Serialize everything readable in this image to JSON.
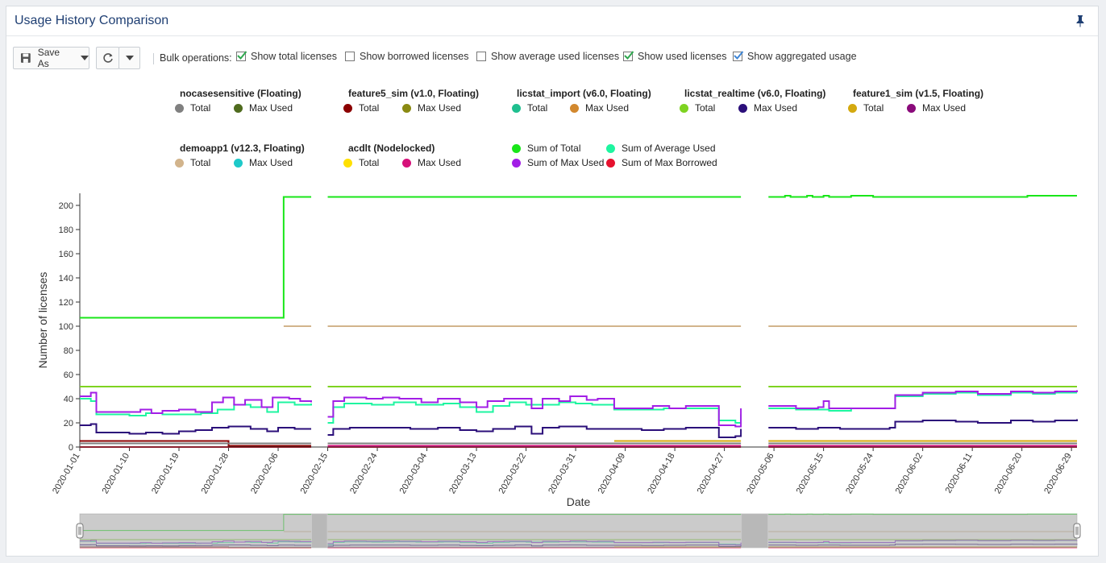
{
  "panel": {
    "title": "Usage History Comparison"
  },
  "toolbar": {
    "save_label": "Save As",
    "bulk_label": "Bulk operations:",
    "checkboxes": [
      {
        "label": "Show total licenses",
        "checked": true
      },
      {
        "label": "Show borrowed licenses",
        "checked": false
      },
      {
        "label": "Show average used licenses",
        "checked": false
      },
      {
        "label": "Show used licenses",
        "checked": true
      },
      {
        "label": "Show aggregated usage",
        "checked": true
      }
    ]
  },
  "legend": {
    "groups": [
      {
        "title": "nocasesensitive (Floating)",
        "items": [
          {
            "label": "Total",
            "color": "#808080"
          },
          {
            "label": "Max Used",
            "color": "#4f6b1e"
          }
        ]
      },
      {
        "title": "feature5_sim (v1.0, Floating)",
        "items": [
          {
            "label": "Total",
            "color": "#8b0000"
          },
          {
            "label": "Max Used",
            "color": "#8a8a12"
          }
        ]
      },
      {
        "title": "licstat_import (v6.0, Floating)",
        "items": [
          {
            "label": "Total",
            "color": "#1fbf8f"
          },
          {
            "label": "Max Used",
            "color": "#d2882e"
          }
        ]
      },
      {
        "title": "licstat_realtime (v6.0, Floating)",
        "items": [
          {
            "label": "Total",
            "color": "#7ed321"
          },
          {
            "label": "Max Used",
            "color": "#2b0f7a"
          }
        ]
      },
      {
        "title": "feature1_sim (v1.5, Floating)",
        "items": [
          {
            "label": "Total",
            "color": "#d4a90f"
          },
          {
            "label": "Max Used",
            "color": "#8a0a7a"
          }
        ]
      },
      {
        "title": "demoapp1 (v12.3, Floating)",
        "items": [
          {
            "label": "Total",
            "color": "#d2b48c"
          },
          {
            "label": "Max Used",
            "color": "#1ec9c9"
          }
        ]
      },
      {
        "title": "acdlt (Nodelocked)",
        "items": [
          {
            "label": "Total",
            "color": "#ffe000"
          },
          {
            "label": "Max Used",
            "color": "#d6117a"
          }
        ]
      }
    ],
    "aggregate": [
      {
        "label": "Sum of Total",
        "color": "#19e619"
      },
      {
        "label": "Sum of Average Used",
        "color": "#1ef5a0"
      },
      {
        "label": "Sum of Max Used",
        "color": "#a21ee6"
      },
      {
        "label": "Sum of Max Borrowed",
        "color": "#e6112e"
      }
    ]
  },
  "chart_data": {
    "type": "line",
    "xlabel": "Date",
    "ylabel": "Number of licenses",
    "ylim": [
      0,
      210
    ],
    "yticks": [
      0,
      20,
      40,
      60,
      80,
      100,
      120,
      140,
      160,
      180,
      200
    ],
    "xlim": [
      "2020-01-01",
      "2020-06-30"
    ],
    "xticks": [
      "2020-01-01",
      "2020-01-10",
      "2020-01-19",
      "2020-01-28",
      "2020-02-06",
      "2020-02-15",
      "2020-02-24",
      "2020-03-04",
      "2020-03-13",
      "2020-03-22",
      "2020-03-31",
      "2020-04-09",
      "2020-04-18",
      "2020-04-27",
      "2020-05-06",
      "2020-05-15",
      "2020-05-24",
      "2020-06-02",
      "2020-06-11",
      "2020-06-20",
      "2020-06-29"
    ],
    "gaps": [
      [
        "2020-02-12",
        "2020-02-15"
      ],
      [
        "2020-04-30",
        "2020-05-05"
      ]
    ],
    "series": [
      {
        "name": "Sum of Total",
        "color": "#19e619",
        "points": [
          [
            "2020-01-01",
            107
          ],
          [
            "2020-02-07",
            107
          ],
          [
            "2020-02-07",
            207
          ],
          [
            "2020-02-12",
            207
          ],
          [
            "2020-02-15",
            207
          ],
          [
            "2020-04-30",
            207
          ],
          [
            "2020-05-05",
            207
          ],
          [
            "2020-05-08",
            208
          ],
          [
            "2020-05-09",
            207
          ],
          [
            "2020-05-12",
            208
          ],
          [
            "2020-05-13",
            207
          ],
          [
            "2020-05-15",
            208
          ],
          [
            "2020-05-16",
            207
          ],
          [
            "2020-05-20",
            208
          ],
          [
            "2020-05-24",
            207
          ],
          [
            "2020-06-20",
            207
          ],
          [
            "2020-06-21",
            208
          ],
          [
            "2020-06-30",
            208
          ]
        ]
      },
      {
        "name": "Sum of Max Used",
        "color": "#a21ee6",
        "points": [
          [
            "2020-01-01",
            42
          ],
          [
            "2020-01-03",
            45
          ],
          [
            "2020-01-04",
            29
          ],
          [
            "2020-01-10",
            29
          ],
          [
            "2020-01-12",
            31
          ],
          [
            "2020-01-14",
            28
          ],
          [
            "2020-01-16",
            30
          ],
          [
            "2020-01-19",
            31
          ],
          [
            "2020-01-22",
            29
          ],
          [
            "2020-01-25",
            37
          ],
          [
            "2020-01-27",
            41
          ],
          [
            "2020-01-29",
            35
          ],
          [
            "2020-01-31",
            39
          ],
          [
            "2020-02-03",
            33
          ],
          [
            "2020-02-05",
            41
          ],
          [
            "2020-02-08",
            40
          ],
          [
            "2020-02-10",
            38
          ],
          [
            "2020-02-12",
            37
          ],
          [
            "2020-02-15",
            25
          ],
          [
            "2020-02-16",
            38
          ],
          [
            "2020-02-18",
            41
          ],
          [
            "2020-02-22",
            40
          ],
          [
            "2020-02-25",
            41
          ],
          [
            "2020-02-28",
            40
          ],
          [
            "2020-03-03",
            37
          ],
          [
            "2020-03-06",
            40
          ],
          [
            "2020-03-10",
            37
          ],
          [
            "2020-03-13",
            33
          ],
          [
            "2020-03-15",
            38
          ],
          [
            "2020-03-18",
            40
          ],
          [
            "2020-03-21",
            40
          ],
          [
            "2020-03-23",
            32
          ],
          [
            "2020-03-25",
            40
          ],
          [
            "2020-03-28",
            38
          ],
          [
            "2020-03-30",
            42
          ],
          [
            "2020-04-02",
            39
          ],
          [
            "2020-04-04",
            40
          ],
          [
            "2020-04-07",
            32
          ],
          [
            "2020-04-12",
            32
          ],
          [
            "2020-04-14",
            34
          ],
          [
            "2020-04-17",
            32
          ],
          [
            "2020-04-20",
            34
          ],
          [
            "2020-04-25",
            34
          ],
          [
            "2020-04-26",
            18
          ],
          [
            "2020-04-29",
            17
          ],
          [
            "2020-04-30",
            32
          ],
          [
            "2020-05-05",
            34
          ],
          [
            "2020-05-10",
            32
          ],
          [
            "2020-05-14",
            33
          ],
          [
            "2020-05-15",
            38
          ],
          [
            "2020-05-16",
            32
          ],
          [
            "2020-05-20",
            32
          ],
          [
            "2020-05-27",
            32
          ],
          [
            "2020-05-28",
            43
          ],
          [
            "2020-06-02",
            45
          ],
          [
            "2020-06-08",
            46
          ],
          [
            "2020-06-12",
            44
          ],
          [
            "2020-06-18",
            46
          ],
          [
            "2020-06-22",
            45
          ],
          [
            "2020-06-26",
            46
          ],
          [
            "2020-06-30",
            47
          ]
        ]
      },
      {
        "name": "Sum of Average Used",
        "color": "#1ef5a0",
        "points": [
          [
            "2020-01-01",
            40
          ],
          [
            "2020-01-03",
            38
          ],
          [
            "2020-01-04",
            27
          ],
          [
            "2020-01-10",
            26
          ],
          [
            "2020-01-13",
            28
          ],
          [
            "2020-01-16",
            27
          ],
          [
            "2020-01-19",
            27
          ],
          [
            "2020-01-23",
            28
          ],
          [
            "2020-01-26",
            31
          ],
          [
            "2020-01-29",
            35
          ],
          [
            "2020-02-01",
            33
          ],
          [
            "2020-02-04",
            29
          ],
          [
            "2020-02-06",
            37
          ],
          [
            "2020-02-09",
            35
          ],
          [
            "2020-02-12",
            36
          ],
          [
            "2020-02-15",
            20
          ],
          [
            "2020-02-16",
            33
          ],
          [
            "2020-02-18",
            36
          ],
          [
            "2020-02-23",
            35
          ],
          [
            "2020-02-27",
            37
          ],
          [
            "2020-03-02",
            35
          ],
          [
            "2020-03-07",
            36
          ],
          [
            "2020-03-10",
            33
          ],
          [
            "2020-03-13",
            29
          ],
          [
            "2020-03-16",
            34
          ],
          [
            "2020-03-19",
            37
          ],
          [
            "2020-03-22",
            35
          ],
          [
            "2020-03-25",
            35
          ],
          [
            "2020-03-28",
            37
          ],
          [
            "2020-03-31",
            36
          ],
          [
            "2020-04-03",
            35
          ],
          [
            "2020-04-07",
            31
          ],
          [
            "2020-04-13",
            31
          ],
          [
            "2020-04-16",
            32
          ],
          [
            "2020-04-20",
            32
          ],
          [
            "2020-04-25",
            32
          ],
          [
            "2020-04-26",
            22
          ],
          [
            "2020-04-29",
            20
          ],
          [
            "2020-04-30",
            27
          ],
          [
            "2020-05-05",
            32
          ],
          [
            "2020-05-10",
            31
          ],
          [
            "2020-05-14",
            31
          ],
          [
            "2020-05-16",
            30
          ],
          [
            "2020-05-20",
            32
          ],
          [
            "2020-05-27",
            32
          ],
          [
            "2020-05-28",
            42
          ],
          [
            "2020-06-02",
            44
          ],
          [
            "2020-06-08",
            45
          ],
          [
            "2020-06-12",
            43
          ],
          [
            "2020-06-18",
            45
          ],
          [
            "2020-06-22",
            44
          ],
          [
            "2020-06-26",
            45
          ],
          [
            "2020-06-30",
            45
          ]
        ]
      },
      {
        "name": "demoapp1 Total",
        "color": "#d2b48c",
        "points": [
          [
            "2020-02-07",
            100
          ],
          [
            "2020-02-12",
            100
          ],
          [
            "2020-02-15",
            100
          ],
          [
            "2020-04-30",
            100
          ],
          [
            "2020-05-05",
            100
          ],
          [
            "2020-06-30",
            100
          ]
        ]
      },
      {
        "name": "licstat_realtime Total",
        "color": "#7ed321",
        "points": [
          [
            "2020-01-01",
            50
          ],
          [
            "2020-02-12",
            50
          ],
          [
            "2020-02-15",
            50
          ],
          [
            "2020-04-30",
            50
          ],
          [
            "2020-05-05",
            50
          ],
          [
            "2020-06-30",
            50
          ]
        ]
      },
      {
        "name": "licstat_realtime Max Used",
        "color": "#2b0f7a",
        "points": [
          [
            "2020-01-01",
            18
          ],
          [
            "2020-01-03",
            19
          ],
          [
            "2020-01-04",
            12
          ],
          [
            "2020-01-10",
            11
          ],
          [
            "2020-01-13",
            12
          ],
          [
            "2020-01-16",
            11
          ],
          [
            "2020-01-19",
            13
          ],
          [
            "2020-01-22",
            14
          ],
          [
            "2020-01-25",
            16
          ],
          [
            "2020-01-28",
            17
          ],
          [
            "2020-02-01",
            15
          ],
          [
            "2020-02-04",
            13
          ],
          [
            "2020-02-06",
            16
          ],
          [
            "2020-02-09",
            15
          ],
          [
            "2020-02-12",
            15
          ],
          [
            "2020-02-15",
            10
          ],
          [
            "2020-02-16",
            15
          ],
          [
            "2020-02-19",
            16
          ],
          [
            "2020-02-25",
            16
          ],
          [
            "2020-03-01",
            15
          ],
          [
            "2020-03-06",
            16
          ],
          [
            "2020-03-10",
            14
          ],
          [
            "2020-03-13",
            13
          ],
          [
            "2020-03-16",
            15
          ],
          [
            "2020-03-20",
            17
          ],
          [
            "2020-03-23",
            11
          ],
          [
            "2020-03-25",
            16
          ],
          [
            "2020-03-28",
            17
          ],
          [
            "2020-04-02",
            15
          ],
          [
            "2020-04-07",
            15
          ],
          [
            "2020-04-12",
            14
          ],
          [
            "2020-04-16",
            15
          ],
          [
            "2020-04-20",
            16
          ],
          [
            "2020-04-25",
            16
          ],
          [
            "2020-04-26",
            8
          ],
          [
            "2020-04-29",
            9
          ],
          [
            "2020-04-30",
            15
          ],
          [
            "2020-05-05",
            16
          ],
          [
            "2020-05-10",
            15
          ],
          [
            "2020-05-14",
            16
          ],
          [
            "2020-05-18",
            15
          ],
          [
            "2020-05-27",
            16
          ],
          [
            "2020-05-28",
            21
          ],
          [
            "2020-06-02",
            22
          ],
          [
            "2020-06-08",
            21
          ],
          [
            "2020-06-12",
            20
          ],
          [
            "2020-06-18",
            22
          ],
          [
            "2020-06-22",
            21
          ],
          [
            "2020-06-26",
            22
          ],
          [
            "2020-06-30",
            23
          ]
        ]
      },
      {
        "name": "feature1_sim Total",
        "color": "#d4a90f",
        "points": [
          [
            "2020-04-07",
            5
          ],
          [
            "2020-04-30",
            5
          ],
          [
            "2020-05-05",
            5
          ],
          [
            "2020-06-30",
            5
          ]
        ]
      },
      {
        "name": "nocasesensitive Total",
        "color": "#808080",
        "points": [
          [
            "2020-01-01",
            3
          ],
          [
            "2020-02-12",
            3
          ],
          [
            "2020-02-15",
            3
          ],
          [
            "2020-04-30",
            3
          ],
          [
            "2020-05-05",
            3
          ],
          [
            "2020-06-30",
            3
          ]
        ]
      },
      {
        "name": "feature5_sim Total",
        "color": "#8b0000",
        "points": [
          [
            "2020-01-01",
            5
          ],
          [
            "2020-01-28",
            5
          ],
          [
            "2020-01-28",
            1
          ],
          [
            "2020-02-12",
            1
          ]
        ]
      },
      {
        "name": "acdlt Max Used",
        "color": "#d6117a",
        "points": [
          [
            "2020-02-15",
            1
          ],
          [
            "2020-04-30",
            1
          ],
          [
            "2020-05-05",
            1
          ],
          [
            "2020-06-30",
            1
          ]
        ]
      },
      {
        "name": "Sum of Max Borrowed",
        "color": "#e6112e",
        "points": [
          [
            "2020-01-01",
            0
          ],
          [
            "2020-02-12",
            0
          ],
          [
            "2020-02-15",
            0
          ],
          [
            "2020-04-30",
            0
          ],
          [
            "2020-05-05",
            0
          ],
          [
            "2020-06-30",
            0
          ]
        ]
      }
    ]
  }
}
